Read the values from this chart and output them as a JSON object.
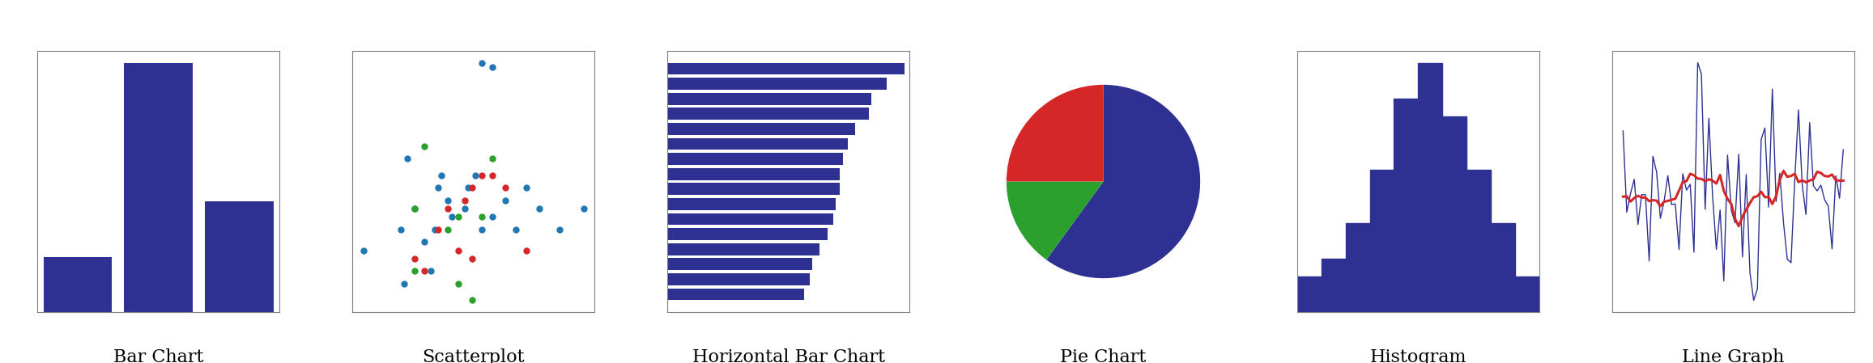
{
  "bar_values": [
    2,
    9,
    4
  ],
  "bar_color": "#2e3191",
  "scatter_blue_x": [
    5.5,
    5.8,
    3.1,
    3.5,
    3.3,
    4.2,
    4.3,
    4.5,
    4.6,
    5.0,
    5.1,
    5.3,
    5.5,
    5.8,
    6.2,
    6.5,
    7.2,
    7.8,
    8.5,
    2.0,
    3.8,
    4.1,
    4.0,
    3.2,
    6.8
  ],
  "scatter_blue_y": [
    9.5,
    9.4,
    5.5,
    6.0,
    7.2,
    6.5,
    6.8,
    6.2,
    5.8,
    6.0,
    6.5,
    6.8,
    5.5,
    5.8,
    6.2,
    5.5,
    6.0,
    5.5,
    6.0,
    5.0,
    5.2,
    5.5,
    4.5,
    4.2,
    6.5
  ],
  "scatter_red_x": [
    4.5,
    5.0,
    5.2,
    5.5,
    4.8,
    5.8,
    6.2,
    3.5,
    3.8,
    4.2,
    6.8,
    5.2
  ],
  "scatter_red_y": [
    6.0,
    6.2,
    6.5,
    6.8,
    5.0,
    6.8,
    6.5,
    4.8,
    4.5,
    5.5,
    5.0,
    4.8
  ],
  "scatter_green_x": [
    3.8,
    5.8,
    3.5,
    4.8,
    5.5,
    4.5,
    4.8,
    3.5,
    5.2
  ],
  "scatter_green_y": [
    7.5,
    7.2,
    6.0,
    5.8,
    5.8,
    5.5,
    4.2,
    4.5,
    3.8
  ],
  "scatter_color_blue": "#1f77b4",
  "scatter_color_red": "#d62728",
  "scatter_color_green": "#2ca02c",
  "hbar_values": [
    20,
    18.5,
    17.2,
    17.0,
    15.8,
    15.2,
    14.8,
    14.5,
    14.5,
    14.2,
    14.0,
    13.5,
    12.8,
    12.2,
    12.0,
    11.5
  ],
  "hbar_color": "#2e3191",
  "pie_sizes": [
    60,
    15,
    25
  ],
  "pie_colors": [
    "#2e3191",
    "#2ca02c",
    "#d62728"
  ],
  "pie_startangle": 90,
  "hist_counts": [
    2,
    3,
    5,
    8,
    12,
    14,
    11,
    8,
    5,
    2
  ],
  "hist_color": "#2e3191",
  "line1_color": "#2e3191",
  "line2_color": "#d62728",
  "chart_titles": [
    "Bar Chart",
    "Scatterplot",
    "Horizontal Bar Chart",
    "Pie Chart",
    "Histogram",
    "Line Graph"
  ],
  "title_fontsize": 16,
  "title_fontfamily": "serif"
}
